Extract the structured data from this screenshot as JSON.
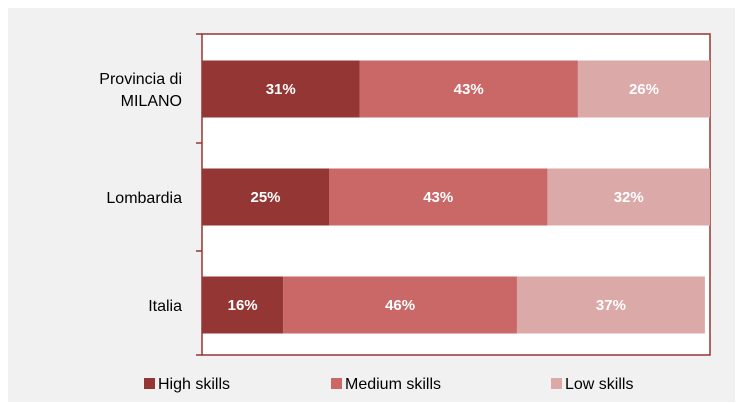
{
  "chart_data": {
    "type": "bar",
    "orientation": "horizontal",
    "stacked": true,
    "categories": [
      "Provincia di MILANO",
      "Lombardia",
      "Italia"
    ],
    "category_lines": [
      [
        "Provincia di",
        "MILANO"
      ],
      [
        "Lombardia"
      ],
      [
        "Italia"
      ]
    ],
    "series": [
      {
        "name": "High skills",
        "values": [
          31,
          25,
          16
        ],
        "labels": [
          "31%",
          "25%",
          "16%"
        ],
        "color": "#943634"
      },
      {
        "name": "Medium skills",
        "values": [
          43,
          43,
          46
        ],
        "labels": [
          "43%",
          "43%",
          "46%"
        ],
        "color": "#c96866"
      },
      {
        "name": "Low skills",
        "values": [
          26,
          32,
          37
        ],
        "labels": [
          "26%",
          "32%",
          "37%"
        ],
        "color": "#dba9a8"
      }
    ],
    "xlim": [
      0,
      100
    ],
    "legend_position": "bottom",
    "grid": false,
    "background_color": "#f1f1f1",
    "plot_background_color": "#ffffff",
    "axis_color": "#943634",
    "data_label_color": "#ffffff"
  }
}
